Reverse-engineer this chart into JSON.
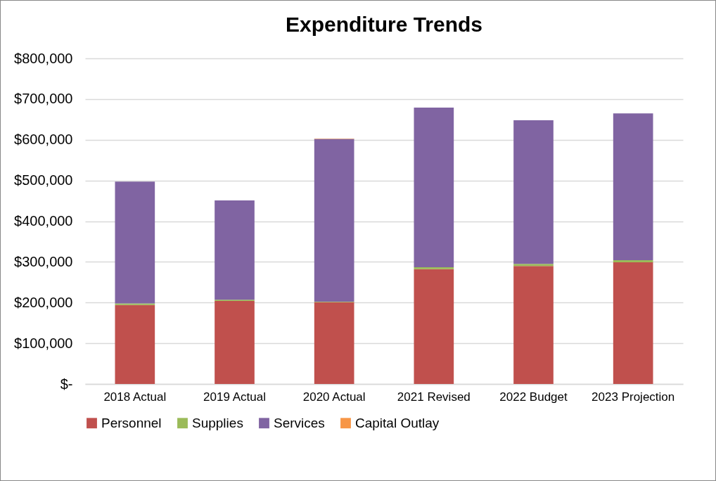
{
  "chart_data": {
    "type": "bar",
    "title": "Expenditure Trends",
    "stacked": true,
    "categories": [
      "2018 Actual",
      "2019 Actual",
      "2020 Actual",
      "2021 Revised",
      "2022 Budget",
      "2023 Projection"
    ],
    "series": [
      {
        "name": "Personnel",
        "color": "#c0504d",
        "values": [
          194000,
          204000,
          201000,
          282000,
          290000,
          299000
        ]
      },
      {
        "name": "Supplies",
        "color": "#9bbb59",
        "values": [
          4000,
          3000,
          1000,
          5000,
          5000,
          5000
        ]
      },
      {
        "name": "Services",
        "color": "#8064a2",
        "values": [
          299000,
          244000,
          400000,
          392000,
          353000,
          361000
        ]
      },
      {
        "name": "Capital Outlay",
        "color": "#f79646",
        "values": [
          0,
          0,
          1000,
          0,
          0,
          0
        ]
      }
    ],
    "ylim": [
      0,
      800000
    ],
    "yticks": [
      {
        "value": 0,
        "label": "$-"
      },
      {
        "value": 100000,
        "label": "$100,000"
      },
      {
        "value": 200000,
        "label": "$200,000"
      },
      {
        "value": 300000,
        "label": "$300,000"
      },
      {
        "value": 400000,
        "label": "$400,000"
      },
      {
        "value": 500000,
        "label": "$500,000"
      },
      {
        "value": 600000,
        "label": "$600,000"
      },
      {
        "value": 700000,
        "label": "$700,000"
      },
      {
        "value": 800000,
        "label": "$800,000"
      }
    ],
    "grid": "y",
    "legend": "bottom"
  }
}
